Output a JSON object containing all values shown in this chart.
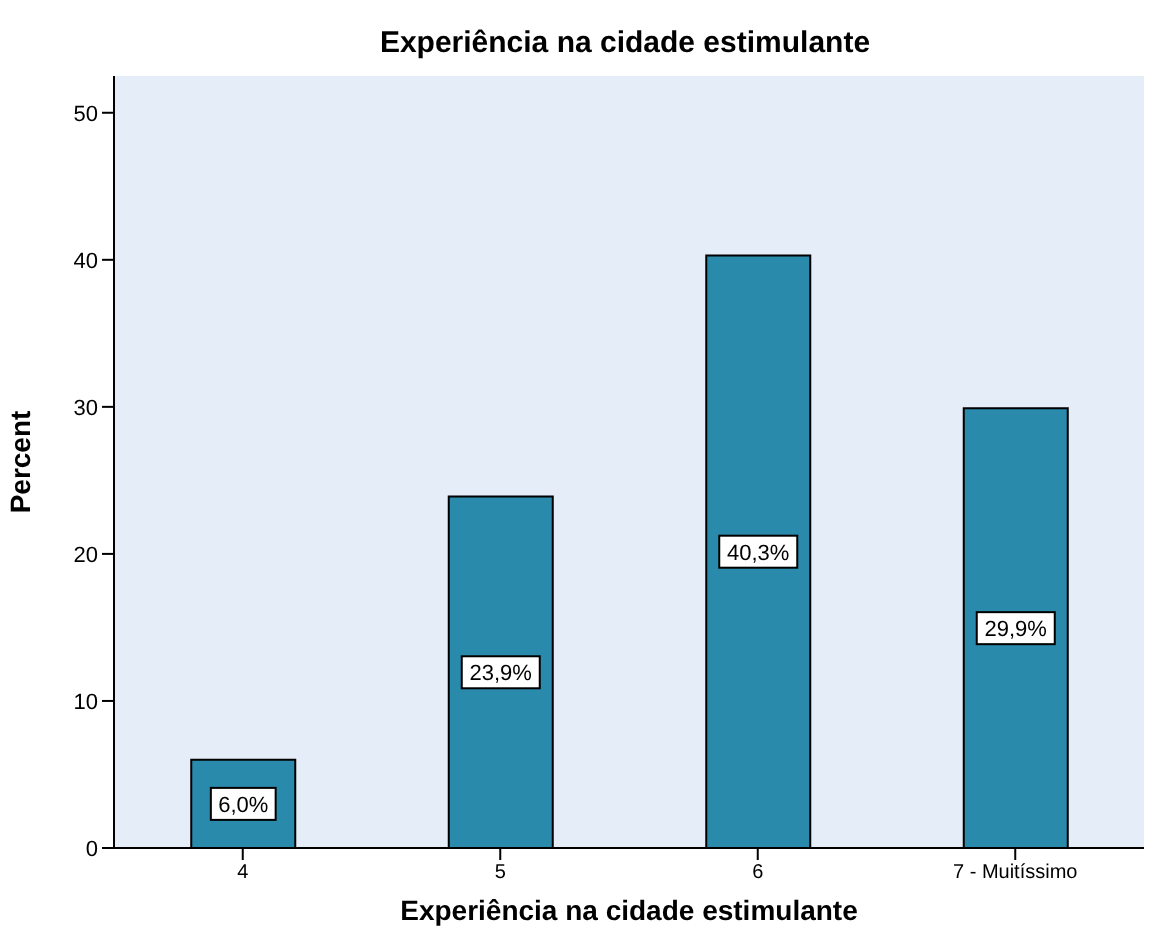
{
  "chart_data": {
    "type": "bar",
    "title": "Experiência na cidade estimulante",
    "xlabel": "Experiência na cidade estimulante",
    "ylabel": "Percent",
    "categories": [
      "4",
      "5",
      "6",
      "7 - Muitíssimo"
    ],
    "values": [
      6.0,
      23.9,
      40.3,
      29.9
    ],
    "value_labels": [
      "6,0%",
      "23,9%",
      "40,3%",
      "29,9%"
    ],
    "color": "#2a8aab",
    "ylim": [
      0,
      52.5
    ],
    "yticks": [
      0,
      10,
      20,
      30,
      40,
      50
    ],
    "grid": false
  }
}
